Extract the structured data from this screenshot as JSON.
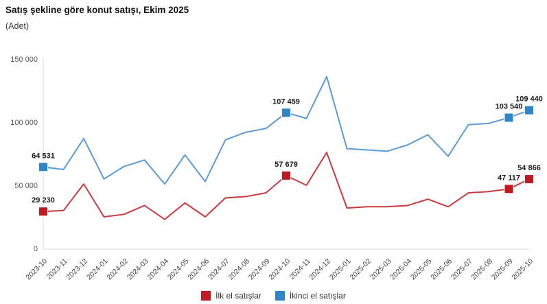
{
  "chart_data": {
    "type": "line",
    "title": "Satış şekline göre konut satışı, Ekim 2025",
    "subtitle": "(Adet)",
    "x": [
      "2023-10",
      "2023-11",
      "2023-12",
      "2024-01",
      "2024-02",
      "2024-03",
      "2024-04",
      "2024-05",
      "2024-06",
      "2024-07",
      "2024-08",
      "2024-09",
      "2024-10",
      "2024-11",
      "2024-12",
      "2025-01",
      "2025-02",
      "2025-03",
      "2025-04",
      "2025-05",
      "2025-06",
      "2025-07",
      "2025-08",
      "2025-09",
      "2025-10"
    ],
    "y_axis": {
      "min": 0,
      "max": 150000,
      "ticks": [
        0,
        50000,
        100000,
        150000
      ],
      "labels": [
        "0",
        "50 000",
        "100 000",
        "150 000"
      ]
    },
    "series": [
      {
        "name": "İlk el satışlar",
        "color": "#BE1B20",
        "line_color": "#C9393D",
        "values": [
          29230,
          30000,
          51000,
          25000,
          27000,
          34000,
          23000,
          36000,
          25000,
          40000,
          41000,
          44000,
          57679,
          50000,
          76000,
          32000,
          33000,
          33000,
          34000,
          39000,
          33000,
          44000,
          45000,
          47117,
          54866
        ],
        "labeled_indices": [
          0,
          12,
          23,
          24
        ],
        "data_labels": [
          "29 230",
          "57 679",
          "47 117",
          "54 866"
        ]
      },
      {
        "name": "İkinci el satışlar",
        "color": "#2E86C8",
        "line_color": "#5B9BD5",
        "values": [
          64531,
          62500,
          87000,
          55000,
          65000,
          70000,
          51000,
          74000,
          53000,
          86000,
          92000,
          95000,
          107459,
          103000,
          136000,
          79000,
          78000,
          77000,
          82000,
          90000,
          73000,
          98000,
          99000,
          103540,
          109440
        ],
        "labeled_indices": [
          0,
          12,
          23,
          24
        ],
        "data_labels": [
          "64 531",
          "107 459",
          "103 540",
          "109 440"
        ]
      }
    ],
    "grid": false,
    "legend_position": "bottom",
    "axis_color": "#D9D9D9",
    "tick_text_color": "#595959",
    "x_label_color": "#404040",
    "data_label_color": "#1a1a1a"
  }
}
